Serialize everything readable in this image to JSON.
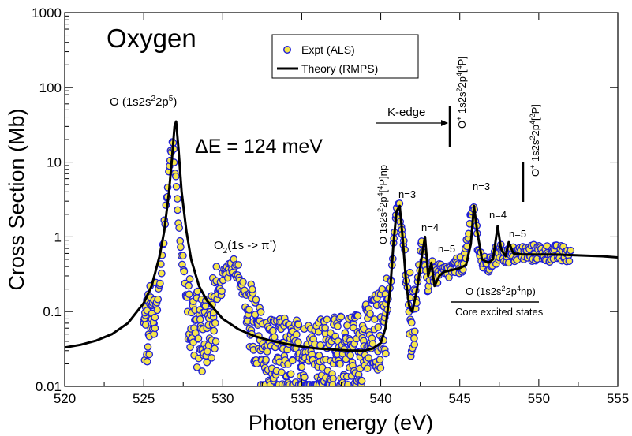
{
  "chart_data": {
    "type": "scatter",
    "title": "Oxygen",
    "xlabel": "Photon energy (eV)",
    "ylabel": "Cross Section (Mb)",
    "xlim": [
      520,
      555
    ],
    "ylim": [
      0.01,
      1000
    ],
    "yscale": "log",
    "grid": false,
    "legend_position": "top-center",
    "x_ticks": [
      520,
      525,
      530,
      535,
      540,
      545,
      550,
      555
    ],
    "x_tick_labels": [
      "520",
      "525",
      "530",
      "535",
      "540",
      "545",
      "550",
      "555"
    ],
    "y_ticks": [
      0.01,
      0.1,
      1,
      10,
      100,
      1000
    ],
    "y_tick_labels": [
      "0.01",
      "0.1",
      "1",
      "10",
      "100",
      "1000"
    ],
    "series": [
      {
        "name": "Expt (ALS)",
        "style": "markers",
        "marker_fill": "#f5e64a",
        "marker_edge": "#1e1ed8",
        "x": [
          525.0,
          525.3,
          525.6,
          525.9,
          526.2,
          526.4,
          526.6,
          526.75,
          526.9,
          527.05,
          527.2,
          527.4,
          527.6,
          527.8,
          528.0,
          528.3,
          528.6,
          528.9,
          529.2,
          529.5,
          529.8,
          530.1,
          530.4,
          530.7,
          531.0,
          531.3,
          531.6,
          531.9,
          532.2,
          532.5,
          532.8,
          533.1,
          533.4,
          533.7,
          534.0,
          534.4,
          534.8,
          535.2,
          535.6,
          536.0,
          536.4,
          536.8,
          537.2,
          537.6,
          538.0,
          538.4,
          538.8,
          539.2,
          539.6,
          540.0,
          540.3,
          540.6,
          540.8,
          541.0,
          541.2,
          541.4,
          541.6,
          541.8,
          542.0,
          542.2,
          542.4,
          542.6,
          542.8,
          543.0,
          543.2,
          543.4,
          543.6,
          543.8,
          544.0,
          544.3,
          544.6,
          544.9,
          545.2,
          545.5,
          545.7,
          545.9,
          546.1,
          546.4,
          546.7,
          547.0,
          547.2,
          547.4,
          547.6,
          547.8,
          548.0,
          548.2,
          548.5,
          548.8,
          549.1,
          549.5,
          550.0,
          550.5,
          551.0,
          551.5,
          552.0
        ],
        "values": [
          0.05,
          0.06,
          0.08,
          0.15,
          0.6,
          2.5,
          9.0,
          18.0,
          14.0,
          5.0,
          1.5,
          0.6,
          0.25,
          0.12,
          0.08,
          0.06,
          0.05,
          0.06,
          0.07,
          0.1,
          0.18,
          0.3,
          0.4,
          0.42,
          0.35,
          0.2,
          0.1,
          0.06,
          0.04,
          0.03,
          0.025,
          0.03,
          0.025,
          0.022,
          0.025,
          0.02,
          0.025,
          0.022,
          0.025,
          0.022,
          0.025,
          0.028,
          0.022,
          0.03,
          0.028,
          0.03,
          0.035,
          0.04,
          0.05,
          0.06,
          0.08,
          0.2,
          0.8,
          2.0,
          2.4,
          1.2,
          0.3,
          0.12,
          0.07,
          0.1,
          0.3,
          0.8,
          0.4,
          0.2,
          0.4,
          0.3,
          0.3,
          0.35,
          0.32,
          0.35,
          0.38,
          0.4,
          0.45,
          0.8,
          1.8,
          2.5,
          1.0,
          0.45,
          0.4,
          0.42,
          0.7,
          0.45,
          0.9,
          0.5,
          0.6,
          0.55,
          0.58,
          0.6,
          0.6,
          0.6,
          0.62,
          0.6,
          0.6,
          0.58,
          0.58
        ]
      },
      {
        "name": "Theory (RMPS)",
        "style": "line",
        "color": "#000000",
        "x": [
          520.0,
          521.0,
          522.0,
          523.0,
          524.0,
          525.0,
          525.5,
          526.0,
          526.3,
          526.6,
          526.8,
          526.95,
          527.05,
          527.2,
          527.4,
          527.7,
          528.0,
          528.5,
          529.0,
          530.0,
          531.0,
          532.0,
          533.0,
          534.0,
          535.0,
          536.0,
          537.0,
          538.0,
          539.0,
          539.5,
          540.0,
          540.3,
          540.6,
          540.8,
          541.0,
          541.2,
          541.4,
          541.6,
          541.8,
          542.0,
          542.3,
          542.6,
          542.8,
          543.0,
          543.2,
          543.4,
          543.7,
          544.0,
          544.5,
          545.0,
          545.4,
          545.7,
          545.9,
          546.1,
          546.4,
          546.8,
          547.1,
          547.4,
          547.6,
          547.9,
          548.1,
          548.4,
          549.0,
          550.0,
          551.0,
          552.0,
          553.0,
          554.0,
          555.0
        ],
        "values": [
          0.033,
          0.036,
          0.041,
          0.05,
          0.07,
          0.13,
          0.22,
          0.55,
          1.2,
          4.0,
          12.0,
          30.0,
          35.0,
          15.0,
          4.0,
          1.2,
          0.5,
          0.22,
          0.14,
          0.08,
          0.058,
          0.047,
          0.041,
          0.037,
          0.034,
          0.032,
          0.031,
          0.03,
          0.03,
          0.032,
          0.038,
          0.06,
          0.2,
          0.8,
          2.2,
          2.6,
          0.9,
          0.25,
          0.12,
          0.1,
          0.2,
          0.55,
          1.0,
          0.3,
          0.45,
          0.22,
          0.3,
          0.34,
          0.36,
          0.38,
          0.42,
          0.8,
          2.6,
          1.2,
          0.5,
          0.45,
          0.5,
          1.4,
          0.7,
          0.55,
          0.85,
          0.6,
          0.58,
          0.58,
          0.58,
          0.57,
          0.56,
          0.55,
          0.53
        ]
      }
    ],
    "annotations": {
      "main_peak": {
        "base": "O (1s2s",
        "sup1": "2",
        "mid": "2p",
        "sup2": "5",
        "end": ")"
      },
      "resolution": "ΔE = 124 meV",
      "o2_peak": {
        "pre": "O",
        "sub": "2",
        "mid": "(1s -> π",
        "sup": "*",
        "end": ")"
      },
      "rydberg_series": {
        "pre": "O 1s2s",
        "sup1": "2",
        "mid": "2p",
        "sup2": "4",
        "mid2": "[",
        "sup3": "4",
        "end": "P]np"
      },
      "kedge_label": "K-edge",
      "threshold_4p": {
        "pre": "O",
        "sup0": "+",
        "mid": " 1s2s",
        "sup1": "2",
        "mid2": "2p",
        "sup2": "4",
        "mid3": "[",
        "sup3": "4",
        "end": "P]"
      },
      "threshold_2p": {
        "pre": "O",
        "sup0": "+",
        "mid": " 1s2s",
        "sup1": "2",
        "mid2": "2p",
        "sup2": "4",
        "mid3": "[",
        "sup3": "2",
        "end": "P]"
      },
      "n3_a": "n=3",
      "n4_a": "n=4",
      "n5_a": "n=5",
      "n3_b": "n=3",
      "n4_b": "n=4",
      "n5_b": "n=5",
      "core_states": {
        "pre": "O (1s2s",
        "sup1": "2",
        "mid": "2p",
        "sup2": "4",
        "end": "np)"
      },
      "core_caption": "Core excited states"
    }
  }
}
